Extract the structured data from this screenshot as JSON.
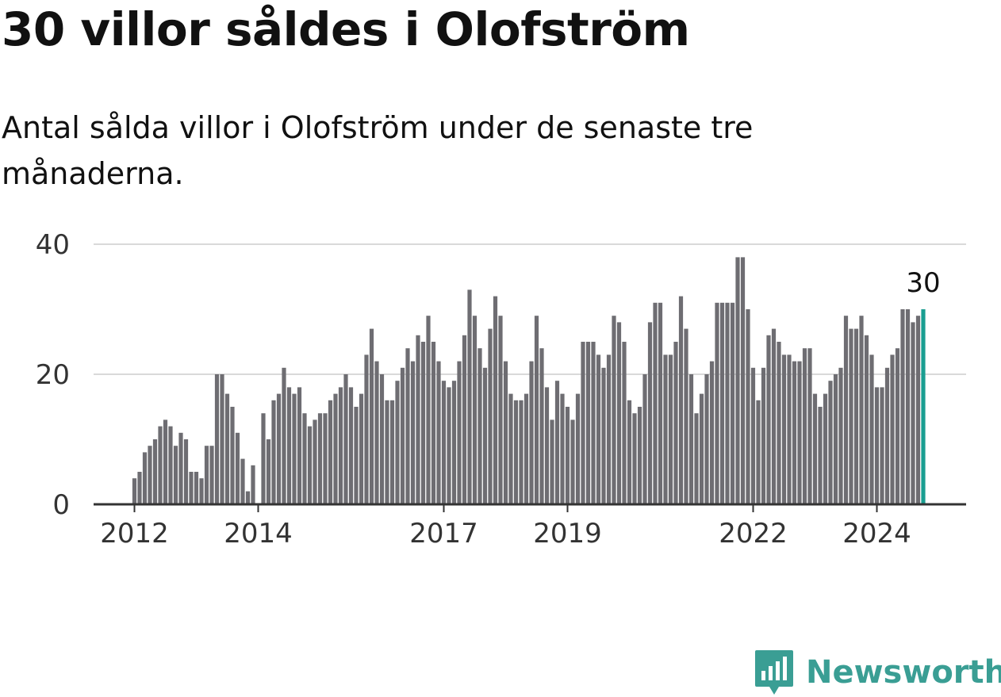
{
  "header": {
    "title": "30 villor såldes i Olofström",
    "subtitle": "Antal sålda villor i Olofström under de senaste tre månaderna."
  },
  "chart_data": {
    "type": "bar",
    "title": "30 villor såldes i Olofström",
    "subtitle": "Antal sålda villor i Olofström under de senaste tre månaderna.",
    "xlabel": "",
    "ylabel": "",
    "ylim": [
      0,
      40
    ],
    "yticks": [
      0,
      20,
      40
    ],
    "grid": true,
    "xticks": [
      {
        "label": "2012",
        "index": 0
      },
      {
        "label": "2014",
        "index": 24
      },
      {
        "label": "2017",
        "index": 60
      },
      {
        "label": "2019",
        "index": 84
      },
      {
        "label": "2022",
        "index": 120
      },
      {
        "label": "2024",
        "index": 144
      }
    ],
    "values": [
      4,
      5,
      8,
      9,
      10,
      12,
      13,
      12,
      9,
      11,
      10,
      5,
      5,
      4,
      9,
      9,
      20,
      20,
      17,
      15,
      11,
      7,
      2,
      6,
      0,
      14,
      10,
      16,
      17,
      21,
      18,
      17,
      18,
      14,
      12,
      13,
      14,
      14,
      16,
      17,
      18,
      20,
      18,
      15,
      17,
      23,
      27,
      22,
      20,
      16,
      16,
      19,
      21,
      24,
      22,
      26,
      25,
      29,
      25,
      22,
      19,
      18,
      19,
      22,
      26,
      33,
      29,
      24,
      21,
      27,
      32,
      29,
      22,
      17,
      16,
      16,
      17,
      22,
      29,
      24,
      18,
      13,
      19,
      17,
      15,
      13,
      17,
      25,
      25,
      25,
      23,
      21,
      23,
      29,
      28,
      25,
      16,
      14,
      15,
      20,
      28,
      31,
      31,
      23,
      23,
      25,
      32,
      27,
      20,
      14,
      17,
      20,
      22,
      31,
      31,
      31,
      31,
      38,
      38,
      30,
      21,
      16,
      21,
      26,
      27,
      25,
      23,
      23,
      22,
      22,
      24,
      24,
      17,
      15,
      17,
      19,
      20,
      21,
      29,
      27,
      27,
      29,
      26,
      23,
      18,
      18,
      21,
      23,
      24,
      30,
      30,
      28,
      29,
      30
    ],
    "highlight": {
      "index": 153,
      "label": "30",
      "color": "#1a9e91"
    },
    "bar_color": "#6e6d72"
  },
  "branding": {
    "logo_text": "Newsworthy",
    "logo_icon": "newsworthy-chart-icon",
    "color": "#3a9e94"
  }
}
